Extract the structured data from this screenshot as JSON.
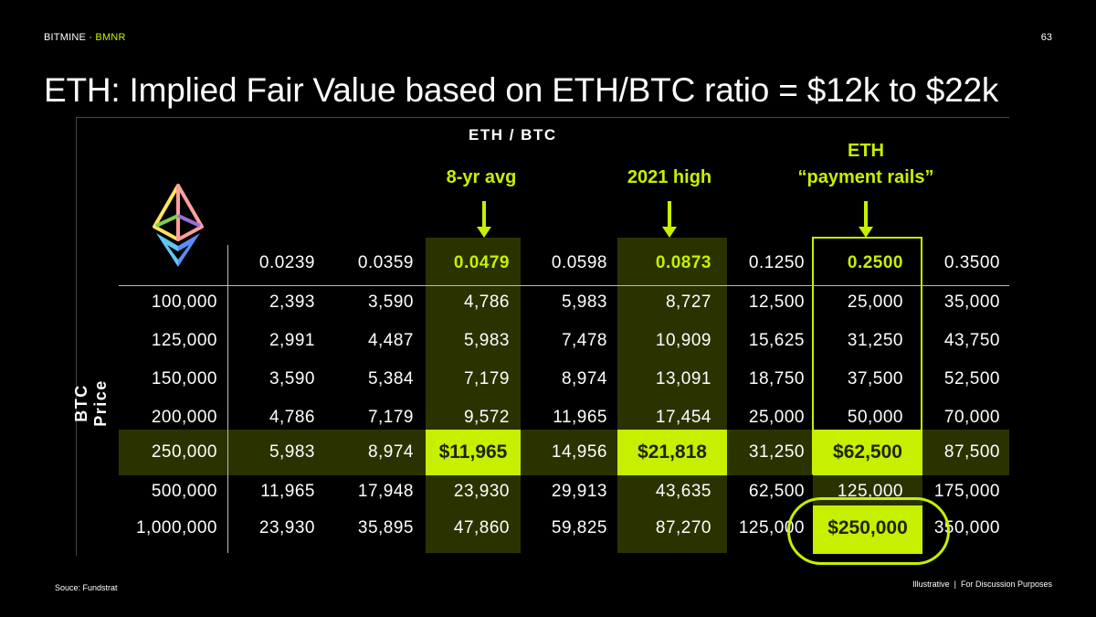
{
  "header": {
    "brand": "BITMINE",
    "separator": " · ",
    "ticker": "BMNR",
    "page_number": "63"
  },
  "title": "ETH: Implied Fair Value based on ETH/BTC ratio = $12k to $22k",
  "axis_labels": {
    "column_axis": "ETH / BTC",
    "row_axis": "BTC Price"
  },
  "callouts": {
    "avg": "8-yr avg",
    "high": "2021 high",
    "rails_line1": "ETH",
    "rails_line2": "“payment rails”"
  },
  "colors": {
    "accent": "#c6f000",
    "band": "#2a3300",
    "background": "#000000"
  },
  "logo": "ethereum-icon",
  "chart_data": {
    "type": "table",
    "columns": [
      "0.0239",
      "0.0359",
      "0.0479",
      "0.0598",
      "0.0873",
      "0.1250",
      "0.2500",
      "0.3500"
    ],
    "highlighted_columns": [
      "0.0479",
      "0.0873",
      "0.2500"
    ],
    "highlighted_row": "250,000",
    "circled_cell": "$250,000",
    "rows": [
      {
        "label": "100,000",
        "values": [
          "2,393",
          "3,590",
          "4,786",
          "5,983",
          "8,727",
          "12,500",
          "25,000",
          "35,000"
        ]
      },
      {
        "label": "125,000",
        "values": [
          "2,991",
          "4,487",
          "5,983",
          "7,478",
          "10,909",
          "15,625",
          "31,250",
          "43,750"
        ]
      },
      {
        "label": "150,000",
        "values": [
          "3,590",
          "5,384",
          "7,179",
          "8,974",
          "13,091",
          "18,750",
          "37,500",
          "52,500"
        ]
      },
      {
        "label": "200,000",
        "values": [
          "4,786",
          "7,179",
          "9,572",
          "11,965",
          "17,454",
          "25,000",
          "50,000",
          "70,000"
        ]
      },
      {
        "label": "250,000",
        "values": [
          "5,983",
          "8,974",
          "$11,965",
          "14,956",
          "$21,818",
          "31,250",
          "$62,500",
          "87,500"
        ]
      },
      {
        "label": "500,000",
        "values": [
          "11,965",
          "17,948",
          "23,930",
          "29,913",
          "43,635",
          "62,500",
          "125,000",
          "175,000"
        ]
      },
      {
        "label": "1,000,000",
        "values": [
          "23,930",
          "35,895",
          "47,860",
          "59,825",
          "87,270",
          "125,000",
          "$250,000",
          "350,000"
        ]
      }
    ]
  },
  "footer": {
    "source": "Souce: Fundstrat",
    "disclaimer": "Illustrative  |  For Discussion Purposes"
  }
}
